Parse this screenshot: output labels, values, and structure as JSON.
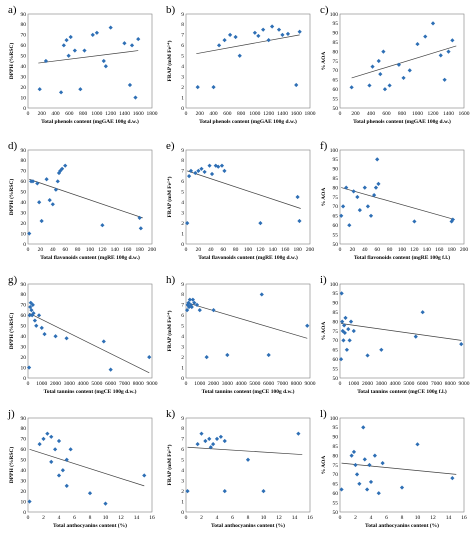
{
  "chart_data": [
    {
      "id": "a",
      "letter": "a)",
      "type": "scatter",
      "xlabel": "Total phenols content (mgGAE 100g d.w.)",
      "ylabel": "DPPH (%RSC)",
      "xlim": [
        0,
        1800
      ],
      "ylim": [
        0,
        90
      ],
      "xticks": [
        0,
        200,
        400,
        600,
        800,
        1000,
        1200,
        1400,
        1600,
        1800
      ],
      "yticks": [
        0,
        10,
        20,
        30,
        40,
        50,
        60,
        70,
        80,
        90
      ],
      "x": [
        170,
        260,
        480,
        520,
        560,
        590,
        620,
        680,
        760,
        820,
        940,
        1000,
        1100,
        1130,
        1200,
        1400,
        1480,
        1510,
        1560,
        1600
      ],
      "y": [
        18,
        45,
        15,
        60,
        65,
        50,
        68,
        55,
        18,
        55,
        70,
        72,
        45,
        40,
        77,
        62,
        22,
        60,
        10,
        66
      ],
      "trend": [
        [
          150,
          43
        ],
        [
          1600,
          55
        ]
      ]
    },
    {
      "id": "b",
      "letter": "b)",
      "type": "scatter",
      "xlabel": "Total phenols content (mgGAE 100g d.w.)",
      "ylabel": "FRAP (mM Fe²⁺)",
      "xlim": [
        0,
        1800
      ],
      "ylim": [
        0,
        9
      ],
      "xticks": [
        0,
        200,
        400,
        600,
        800,
        1000,
        1200,
        1400,
        1600,
        1800
      ],
      "yticks": [
        0,
        1,
        2,
        3,
        4,
        5,
        6,
        7,
        8,
        9
      ],
      "x": [
        170,
        400,
        480,
        560,
        640,
        720,
        780,
        1000,
        1050,
        1120,
        1200,
        1250,
        1350,
        1400,
        1480,
        1600,
        1650
      ],
      "y": [
        2,
        2,
        6,
        6.5,
        7,
        6.8,
        5,
        7.2,
        6.9,
        7.5,
        6.5,
        7.8,
        7.5,
        7,
        7.1,
        2.2,
        7.3
      ],
      "trend": [
        [
          150,
          5.2
        ],
        [
          1650,
          7
        ]
      ]
    },
    {
      "id": "c",
      "letter": "c)",
      "type": "scatter",
      "xlabel": "Total phenols content (mgGAE 100g d.w.)",
      "ylabel": "% AOA",
      "xlim": [
        0,
        1600
      ],
      "ylim": [
        50,
        100
      ],
      "xticks": [
        0,
        200,
        400,
        600,
        800,
        1000,
        1200,
        1400,
        1600
      ],
      "yticks": [
        50,
        55,
        60,
        65,
        70,
        75,
        80,
        85,
        90,
        95,
        100
      ],
      "x": [
        150,
        380,
        420,
        500,
        520,
        560,
        580,
        640,
        760,
        820,
        900,
        1000,
        1100,
        1200,
        1300,
        1350,
        1400,
        1450
      ],
      "y": [
        61,
        62,
        72,
        75,
        68,
        80,
        60,
        62,
        73,
        66,
        70,
        84,
        88,
        95,
        78,
        65,
        80,
        86
      ],
      "trend": [
        [
          150,
          66
        ],
        [
          1500,
          83
        ]
      ]
    },
    {
      "id": "d",
      "letter": "d)",
      "type": "scatter",
      "xlabel": "Total flavonoids content (mgRE 100g d.w.)",
      "ylabel": "DPPH (%RSC)",
      "xlim": [
        0,
        200
      ],
      "ylim": [
        0,
        90
      ],
      "xticks": [
        0,
        20,
        40,
        60,
        80,
        100,
        120,
        140,
        160,
        180,
        200
      ],
      "yticks": [
        0,
        10,
        20,
        30,
        40,
        50,
        60,
        70,
        80,
        90
      ],
      "x": [
        2,
        5,
        8,
        15,
        18,
        22,
        30,
        35,
        40,
        45,
        48,
        50,
        52,
        55,
        60,
        120,
        180,
        182
      ],
      "y": [
        10,
        60,
        60,
        58,
        40,
        22,
        62,
        42,
        38,
        52,
        60,
        68,
        70,
        72,
        75,
        18,
        25,
        15
      ],
      "trend": [
        [
          2,
          62
        ],
        [
          185,
          25
        ]
      ]
    },
    {
      "id": "e",
      "letter": "e)",
      "type": "scatter",
      "xlabel": "Total flavonoids content (mgRE 100g d.w.)",
      "ylabel": "FRAP (mM Fe²⁺)",
      "xlim": [
        0,
        200
      ],
      "ylim": [
        0,
        9
      ],
      "xticks": [
        0,
        20,
        40,
        60,
        80,
        100,
        120,
        140,
        160,
        180,
        200
      ],
      "yticks": [
        0,
        1,
        2,
        3,
        4,
        5,
        6,
        7,
        8,
        9
      ],
      "x": [
        2,
        5,
        8,
        15,
        20,
        25,
        30,
        38,
        42,
        48,
        52,
        58,
        62,
        120,
        180,
        183
      ],
      "y": [
        2,
        6.5,
        7,
        6.8,
        7,
        7.2,
        6.9,
        7.5,
        6.7,
        7.5,
        7.4,
        7.5,
        7,
        2,
        4.5,
        2.2
      ],
      "trend": [
        [
          2,
          7
        ],
        [
          185,
          3.4
        ]
      ]
    },
    {
      "id": "f",
      "letter": "f)",
      "type": "scatter",
      "xlabel": "Total flavonoids content (mgRE 100g f.l.)",
      "ylabel": "% AOA",
      "xlim": [
        0,
        200
      ],
      "ylim": [
        50,
        100
      ],
      "xticks": [
        0,
        20,
        40,
        60,
        80,
        100,
        120,
        140,
        160,
        180,
        200
      ],
      "yticks": [
        50,
        55,
        60,
        65,
        70,
        75,
        80,
        85,
        90,
        95,
        100
      ],
      "x": [
        2,
        5,
        10,
        15,
        22,
        28,
        32,
        40,
        45,
        50,
        55,
        58,
        60,
        62,
        120,
        180,
        182
      ],
      "y": [
        65,
        70,
        80,
        60,
        78,
        75,
        68,
        80,
        70,
        65,
        76,
        80,
        95,
        82,
        62,
        62,
        63
      ],
      "trend": [
        [
          2,
          80
        ],
        [
          185,
          63
        ]
      ]
    },
    {
      "id": "g",
      "letter": "g)",
      "type": "scatter",
      "xlabel": "Total tannins content (mgCE 100g d.w.)",
      "ylabel": "DPPH (%RSC)",
      "xlim": [
        0,
        9000
      ],
      "ylim": [
        0,
        90
      ],
      "xticks": [
        0,
        1000,
        2000,
        3000,
        4000,
        5000,
        6000,
        7000,
        8000,
        9000
      ],
      "yticks": [
        0,
        10,
        20,
        30,
        40,
        50,
        60,
        70,
        80,
        90
      ],
      "x": [
        80,
        120,
        160,
        200,
        250,
        300,
        350,
        400,
        500,
        600,
        800,
        1000,
        1200,
        2000,
        2800,
        5500,
        6000,
        8800
      ],
      "y": [
        10,
        60,
        68,
        72,
        65,
        60,
        70,
        62,
        55,
        50,
        60,
        48,
        42,
        40,
        38,
        35,
        8,
        20
      ],
      "trend": [
        [
          80,
          62
        ],
        [
          8800,
          5
        ]
      ]
    },
    {
      "id": "h",
      "letter": "h)",
      "type": "scatter",
      "xlabel": "Total tannins content (mgCE 100g d.w.)",
      "ylabel": "FRAP (mM Fe²⁺)",
      "xlim": [
        0,
        9000
      ],
      "ylim": [
        0,
        9
      ],
      "xticks": [
        0,
        1000,
        2000,
        3000,
        4000,
        5000,
        6000,
        7000,
        8000,
        9000
      ],
      "yticks": [
        0,
        1,
        2,
        3,
        4,
        5,
        6,
        7,
        8,
        9
      ],
      "x": [
        80,
        120,
        180,
        220,
        280,
        350,
        420,
        500,
        600,
        800,
        1000,
        1500,
        2000,
        3000,
        5500,
        6000,
        8800
      ],
      "y": [
        6.5,
        7,
        7.2,
        6.8,
        7.5,
        7,
        6.8,
        7.5,
        7.2,
        7,
        6.5,
        2,
        6.5,
        2.2,
        8,
        2.2,
        5
      ],
      "trend": [
        [
          80,
          7.2
        ],
        [
          8800,
          3.8
        ]
      ]
    },
    {
      "id": "i",
      "letter": "i)",
      "type": "scatter",
      "xlabel": "Total tannins content (mgCE 100g f.l.)",
      "ylabel": "% AOA",
      "xlim": [
        0,
        9000
      ],
      "ylim": [
        50,
        100
      ],
      "xticks": [
        0,
        1000,
        2000,
        3000,
        4000,
        5000,
        6000,
        7000,
        8000,
        9000
      ],
      "yticks": [
        50,
        55,
        60,
        65,
        70,
        75,
        80,
        85,
        90,
        95,
        100
      ],
      "x": [
        80,
        120,
        160,
        200,
        250,
        300,
        350,
        400,
        500,
        600,
        700,
        800,
        1000,
        2000,
        3000,
        5500,
        6000,
        8800
      ],
      "y": [
        60,
        95,
        80,
        75,
        70,
        78,
        74,
        82,
        65,
        76,
        70,
        80,
        75,
        62,
        65,
        72,
        85,
        68
      ],
      "trend": [
        [
          80,
          79
        ],
        [
          8800,
          70
        ]
      ]
    },
    {
      "id": "j",
      "letter": "j)",
      "type": "scatter",
      "xlabel": "Total anthocyanins content (%)",
      "ylabel": "DPPH (%RSC)",
      "xlim": [
        0,
        16
      ],
      "ylim": [
        0,
        90
      ],
      "xticks": [
        0,
        2,
        4,
        6,
        8,
        10,
        12,
        14,
        16
      ],
      "yticks": [
        0,
        10,
        20,
        30,
        40,
        50,
        60,
        70,
        80,
        90
      ],
      "x": [
        0.2,
        1.5,
        2,
        2.5,
        3,
        3,
        3.5,
        4,
        4,
        4.5,
        5,
        5,
        5.5,
        8,
        10,
        15
      ],
      "y": [
        10,
        65,
        70,
        75,
        48,
        72,
        60,
        68,
        35,
        40,
        25,
        50,
        60,
        18,
        8,
        35
      ],
      "trend": [
        [
          0.2,
          60
        ],
        [
          15,
          25
        ]
      ]
    },
    {
      "id": "k",
      "letter": "k)",
      "type": "scatter",
      "xlabel": "Total anthocyanins content (%)",
      "ylabel": "FRAP (mM Fe²⁺)",
      "xlim": [
        0,
        16
      ],
      "ylim": [
        0,
        9
      ],
      "xticks": [
        0,
        2,
        4,
        6,
        8,
        10,
        12,
        14,
        16
      ],
      "yticks": [
        0,
        1,
        2,
        3,
        4,
        5,
        6,
        7,
        8,
        9
      ],
      "x": [
        0.2,
        1.5,
        2,
        2.5,
        3,
        3.2,
        3.5,
        4,
        4.5,
        5,
        5,
        8,
        10,
        14.5
      ],
      "y": [
        2,
        6.5,
        7.5,
        6.8,
        7,
        6.2,
        6.5,
        7,
        7.2,
        6.8,
        2,
        5,
        2,
        7.5
      ],
      "trend": [
        [
          0.2,
          6.2
        ],
        [
          15,
          5.5
        ]
      ]
    },
    {
      "id": "l",
      "letter": "l)",
      "type": "scatter",
      "xlabel": "Total anthocyanins content (%)",
      "ylabel": "% AOA",
      "xlim": [
        0,
        16
      ],
      "ylim": [
        50,
        100
      ],
      "xticks": [
        0,
        2,
        4,
        6,
        8,
        10,
        12,
        14,
        16
      ],
      "yticks": [
        50,
        55,
        60,
        65,
        70,
        75,
        80,
        85,
        90,
        95,
        100
      ],
      "x": [
        0.2,
        1.5,
        1.8,
        2,
        2.2,
        2.5,
        3,
        3.2,
        3.5,
        3.8,
        4,
        4.5,
        5,
        5.5,
        8,
        10,
        14.5
      ],
      "y": [
        62,
        80,
        82,
        75,
        70,
        65,
        95,
        78,
        62,
        75,
        66,
        80,
        60,
        76,
        63,
        86,
        68
      ],
      "trend": [
        [
          0.2,
          76
        ],
        [
          15,
          70
        ]
      ]
    }
  ]
}
